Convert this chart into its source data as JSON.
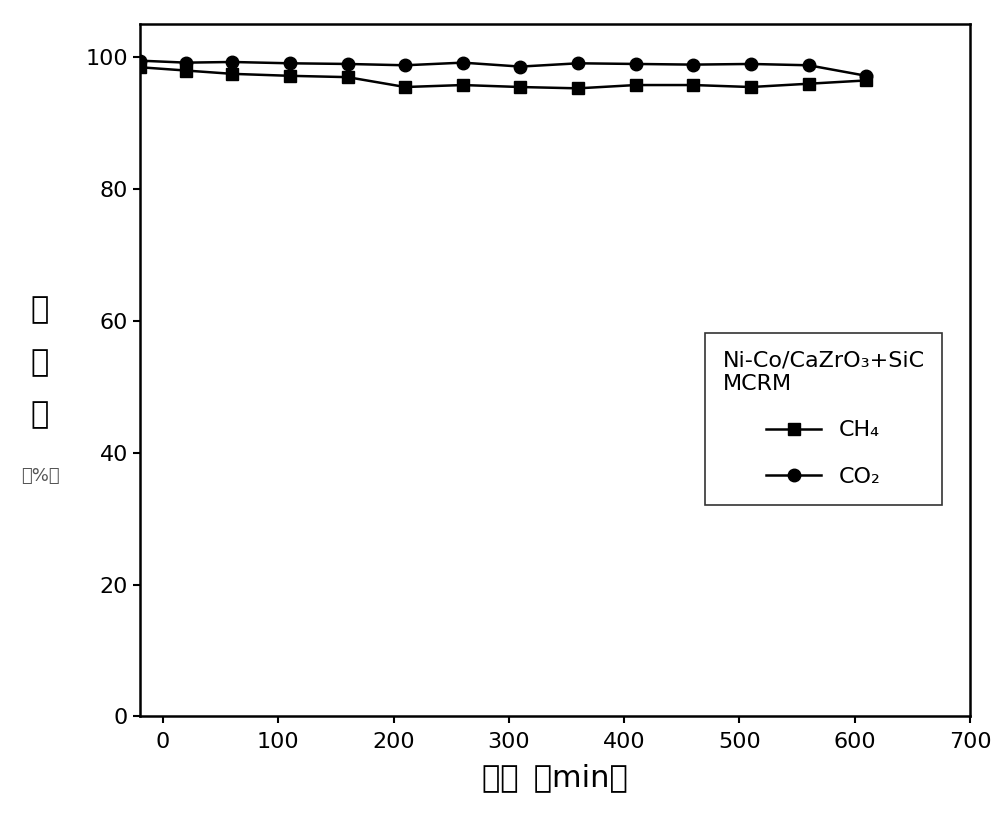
{
  "ch4_x": [
    -20,
    20,
    60,
    110,
    160,
    210,
    260,
    310,
    360,
    410,
    460,
    510,
    560,
    610
  ],
  "ch4_y": [
    98.5,
    98.0,
    97.5,
    97.2,
    97.0,
    95.5,
    95.8,
    95.5,
    95.3,
    95.8,
    95.8,
    95.5,
    96.0,
    96.5
  ],
  "co2_x": [
    -20,
    20,
    60,
    110,
    160,
    210,
    260,
    310,
    360,
    410,
    460,
    510,
    560,
    610
  ],
  "co2_y": [
    99.5,
    99.2,
    99.3,
    99.1,
    99.0,
    98.8,
    99.2,
    98.6,
    99.1,
    99.0,
    98.9,
    99.0,
    98.8,
    97.2
  ],
  "xlim": [
    -20,
    700
  ],
  "ylim": [
    0,
    105
  ],
  "xticks": [
    0,
    100,
    200,
    300,
    400,
    500,
    600,
    700
  ],
  "yticks": [
    0,
    20,
    40,
    60,
    80,
    100
  ],
  "xlabel_cn": "时间",
  "xlabel_unit": "（min）",
  "ylabel_line1": "转",
  "ylabel_line2": "化",
  "ylabel_line3": "率",
  "ylabel_unit": "（%）",
  "legend_title_line1": "Ni-Co/CaZrO₃+SiC",
  "legend_title_line2": "MCRM",
  "ch4_label": "CH₄",
  "co2_label": "CO₂",
  "line_color": "#000000",
  "marker_ch4": "s",
  "marker_co2": "o",
  "marker_size": 9,
  "linewidth": 1.8,
  "font_size_tick": 16,
  "font_size_label": 22,
  "font_size_legend": 16,
  "font_size_ylabel_unit": 13,
  "background_color": "#ffffff"
}
